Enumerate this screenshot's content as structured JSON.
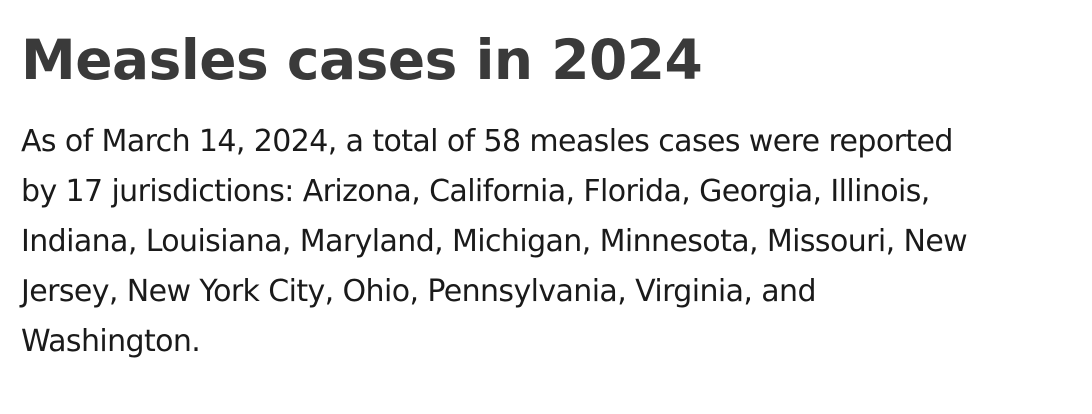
{
  "article": {
    "title": "Measles cases in 2024",
    "paragraph_lines": [
      "As of March 14, 2024, a total of 58 measles cases were reported",
      "by 17 jurisdictions: Arizona, California, Florida, Georgia, Illinois,",
      "Indiana, Louisiana, Maryland, Michigan, Minnesota, Missouri, New",
      "Jersey, New York City, Ohio, Pennsylvania, Virginia, and",
      "Washington."
    ]
  }
}
